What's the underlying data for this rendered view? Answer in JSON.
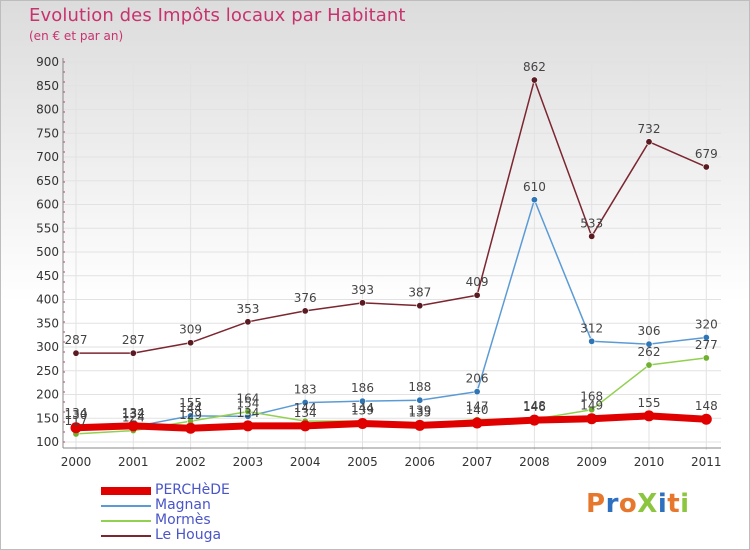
{
  "header": {
    "title": "Evolution des Impôts locaux par Habitant",
    "subtitle": "(en € et par an)"
  },
  "logo": {
    "text": "ProXiti"
  },
  "chart_data": {
    "type": "line",
    "title": "Evolution des Impôts locaux par Habitant",
    "subtitle": "(en € et par an)",
    "xlabel": "",
    "ylabel": "",
    "ylim": [
      100,
      900
    ],
    "yticks": [
      100,
      150,
      200,
      250,
      300,
      350,
      400,
      450,
      500,
      550,
      600,
      650,
      700,
      750,
      800,
      850,
      900
    ],
    "grid": true,
    "legend_position": "bottom-left",
    "categories": [
      "2000",
      "2001",
      "2002",
      "2003",
      "2004",
      "2005",
      "2006",
      "2007",
      "2008",
      "2009",
      "2010",
      "2011"
    ],
    "series": [
      {
        "name": "Le Houga",
        "color": "#7b2630",
        "marker_color": "#5a1a22",
        "values": [
          287,
          287,
          309,
          353,
          376,
          393,
          387,
          409,
          862,
          533,
          732,
          679
        ],
        "labels": [
          "287",
          "287",
          "309",
          "353",
          "376",
          "393",
          "387",
          "409",
          "862",
          "533",
          "732",
          "679"
        ]
      },
      {
        "name": "Magnan",
        "color": "#5b9bd5",
        "marker_color": "#2e75b6",
        "values": [
          134,
          132,
          155,
          154,
          183,
          186,
          188,
          206,
          610,
          312,
          306,
          320
        ],
        "labels": [
          "134",
          "132",
          "155",
          "154",
          "183",
          "186",
          "188",
          "206",
          "610",
          "312",
          "306",
          "320"
        ]
      },
      {
        "name": "Mormès",
        "color": "#92d050",
        "marker_color": "#70b030",
        "values": [
          117,
          124,
          144,
          164,
          144,
          144,
          139,
          147,
          148,
          168,
          262,
          277
        ],
        "labels": [
          "117",
          "124",
          "144",
          "164",
          "144",
          "144",
          "139",
          "147",
          "148",
          "168",
          "262",
          "277"
        ]
      },
      {
        "name": "PERCHèDE",
        "color": "#e00000",
        "marker_color": "#e00000",
        "values": [
          130,
          134,
          129,
          134,
          134,
          139,
          135,
          140,
          146,
          149,
          155,
          148
        ],
        "labels": [
          "130",
          "134",
          "129",
          "134",
          "134",
          "139",
          "135",
          "140",
          "146",
          "149",
          "155",
          "148"
        ]
      }
    ]
  },
  "legend": {
    "items": [
      {
        "label": "PERCHèDE",
        "color": "#e00000"
      },
      {
        "label": "Magnan",
        "color": "#5b9bd5"
      },
      {
        "label": "Mormès",
        "color": "#92d050"
      },
      {
        "label": "Le Houga",
        "color": "#7b2630"
      }
    ]
  }
}
